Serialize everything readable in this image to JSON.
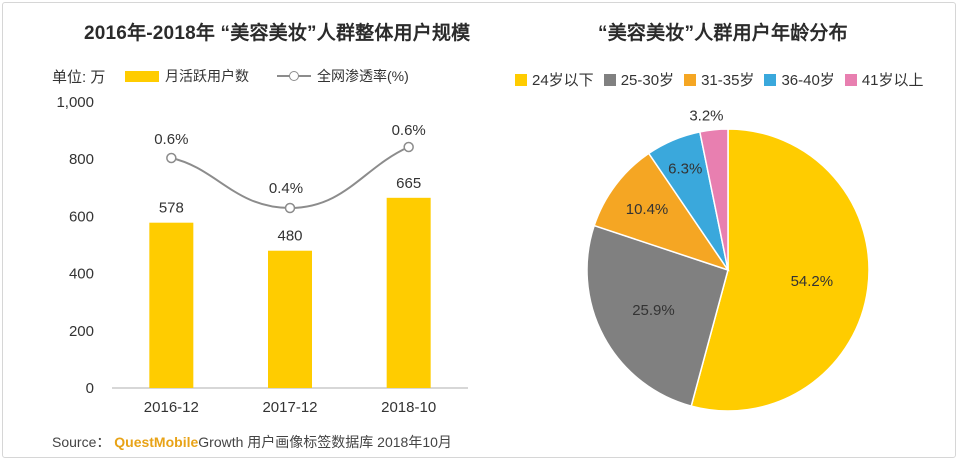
{
  "chart_data": [
    {
      "type": "bar",
      "title": "2016年-2018年 “美容美妆”人群整体用户规模",
      "unit_label": "单位: 万",
      "categories": [
        "2016-12",
        "2017-12",
        "2018-10"
      ],
      "series": [
        {
          "name": "月活跃用户数",
          "kind": "bar",
          "values": [
            578,
            480,
            665
          ],
          "labels": [
            "578",
            "480",
            "665"
          ],
          "color": "#ffcc00"
        },
        {
          "name": "全网渗透率(%)",
          "kind": "line",
          "values": [
            0.6,
            0.4,
            0.6
          ],
          "labels": [
            "0.6%",
            "0.4%",
            "0.6%"
          ],
          "color": "#8c8c8c"
        }
      ],
      "ylim": [
        0,
        1000
      ],
      "yticks": [
        0,
        200,
        400,
        600,
        800,
        1000
      ],
      "ytick_labels": [
        "0",
        "200",
        "400",
        "600",
        "800",
        "1,000"
      ]
    },
    {
      "type": "pie",
      "title": "“美容美妆”人群用户年龄分布",
      "categories": [
        "24岁以下",
        "25-30岁",
        "31-35岁",
        "36-40岁",
        "41岁以上"
      ],
      "values": [
        54.2,
        25.9,
        10.4,
        6.3,
        3.2
      ],
      "labels": [
        "54.2%",
        "25.9%",
        "10.4%",
        "6.3%",
        "3.2%"
      ],
      "colors": [
        "#ffcc00",
        "#808080",
        "#f5a623",
        "#3aa8dc",
        "#e87fb0"
      ]
    }
  ],
  "source": {
    "prefix": "Source：",
    "brand": "QuestMobile",
    "suffix": "Growth 用户画像标签数据库 2018年10月"
  }
}
